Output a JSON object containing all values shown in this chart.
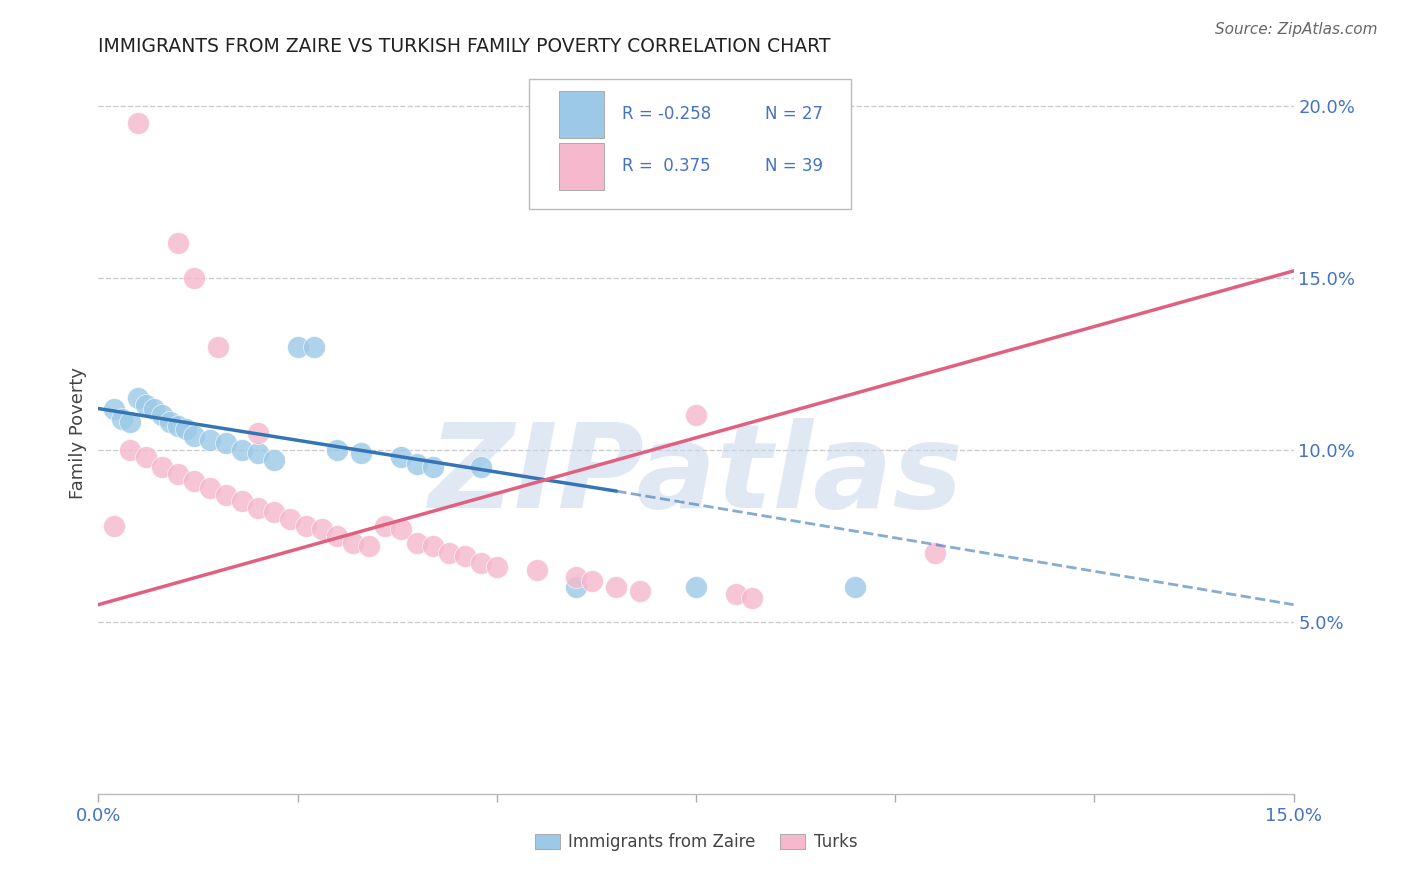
{
  "title": "IMMIGRANTS FROM ZAIRE VS TURKISH FAMILY POVERTY CORRELATION CHART",
  "source": "Source: ZipAtlas.com",
  "ylabel": "Family Poverty",
  "xlim": [
    0.0,
    0.15
  ],
  "ylim": [
    0.0,
    0.21
  ],
  "blue_color": "#9dc9e8",
  "pink_color": "#f5b8cc",
  "blue_line_color": "#3575b5",
  "pink_line_color": "#e06080",
  "blue_scatter": [
    [
      0.002,
      0.112
    ],
    [
      0.003,
      0.109
    ],
    [
      0.004,
      0.108
    ],
    [
      0.005,
      0.115
    ],
    [
      0.006,
      0.113
    ],
    [
      0.007,
      0.112
    ],
    [
      0.008,
      0.11
    ],
    [
      0.009,
      0.108
    ],
    [
      0.01,
      0.107
    ],
    [
      0.011,
      0.106
    ],
    [
      0.012,
      0.104
    ],
    [
      0.014,
      0.103
    ],
    [
      0.016,
      0.102
    ],
    [
      0.018,
      0.1
    ],
    [
      0.02,
      0.099
    ],
    [
      0.022,
      0.097
    ],
    [
      0.025,
      0.13
    ],
    [
      0.027,
      0.13
    ],
    [
      0.03,
      0.1
    ],
    [
      0.033,
      0.099
    ],
    [
      0.038,
      0.098
    ],
    [
      0.04,
      0.096
    ],
    [
      0.042,
      0.095
    ],
    [
      0.048,
      0.095
    ],
    [
      0.06,
      0.06
    ],
    [
      0.075,
      0.06
    ],
    [
      0.095,
      0.06
    ]
  ],
  "pink_scatter": [
    [
      0.005,
      0.195
    ],
    [
      0.01,
      0.16
    ],
    [
      0.012,
      0.15
    ],
    [
      0.015,
      0.13
    ],
    [
      0.02,
      0.105
    ],
    [
      0.004,
      0.1
    ],
    [
      0.006,
      0.098
    ],
    [
      0.008,
      0.095
    ],
    [
      0.01,
      0.093
    ],
    [
      0.012,
      0.091
    ],
    [
      0.014,
      0.089
    ],
    [
      0.016,
      0.087
    ],
    [
      0.018,
      0.085
    ],
    [
      0.002,
      0.078
    ],
    [
      0.02,
      0.083
    ],
    [
      0.022,
      0.082
    ],
    [
      0.024,
      0.08
    ],
    [
      0.026,
      0.078
    ],
    [
      0.028,
      0.077
    ],
    [
      0.03,
      0.075
    ],
    [
      0.032,
      0.073
    ],
    [
      0.034,
      0.072
    ],
    [
      0.036,
      0.078
    ],
    [
      0.038,
      0.077
    ],
    [
      0.04,
      0.073
    ],
    [
      0.042,
      0.072
    ],
    [
      0.044,
      0.07
    ],
    [
      0.046,
      0.069
    ],
    [
      0.048,
      0.067
    ],
    [
      0.05,
      0.066
    ],
    [
      0.055,
      0.065
    ],
    [
      0.06,
      0.063
    ],
    [
      0.062,
      0.062
    ],
    [
      0.065,
      0.06
    ],
    [
      0.068,
      0.059
    ],
    [
      0.075,
      0.11
    ],
    [
      0.08,
      0.058
    ],
    [
      0.082,
      0.057
    ],
    [
      0.105,
      0.07
    ]
  ],
  "blue_line_solid": [
    [
      0.0,
      0.112
    ],
    [
      0.065,
      0.088
    ]
  ],
  "blue_line_dashed": [
    [
      0.065,
      0.088
    ],
    [
      0.15,
      0.055
    ]
  ],
  "pink_line": [
    [
      0.0,
      0.055
    ],
    [
      0.15,
      0.152
    ]
  ],
  "watermark": "ZIPatlas",
  "watermark_color": "#c8d8ea",
  "background_color": "#ffffff",
  "grid_color": "#cccccc",
  "ytick_pos": [
    0.05,
    0.1,
    0.15,
    0.2
  ],
  "ytick_labels": [
    "5.0%",
    "10.0%",
    "15.0%",
    "20.0%"
  ],
  "xtick_pos": [
    0.0,
    0.025,
    0.05,
    0.075,
    0.1,
    0.125,
    0.15
  ],
  "xtick_labels": [
    "0.0%",
    "",
    "",
    "",
    "",
    "",
    "15.0%"
  ],
  "legend": {
    "r1": "R = -0.258",
    "n1": "N = 27",
    "r2": "R =  0.375",
    "n2": "N = 39"
  },
  "bottom_legend": [
    "Immigrants from Zaire",
    "Turks"
  ]
}
